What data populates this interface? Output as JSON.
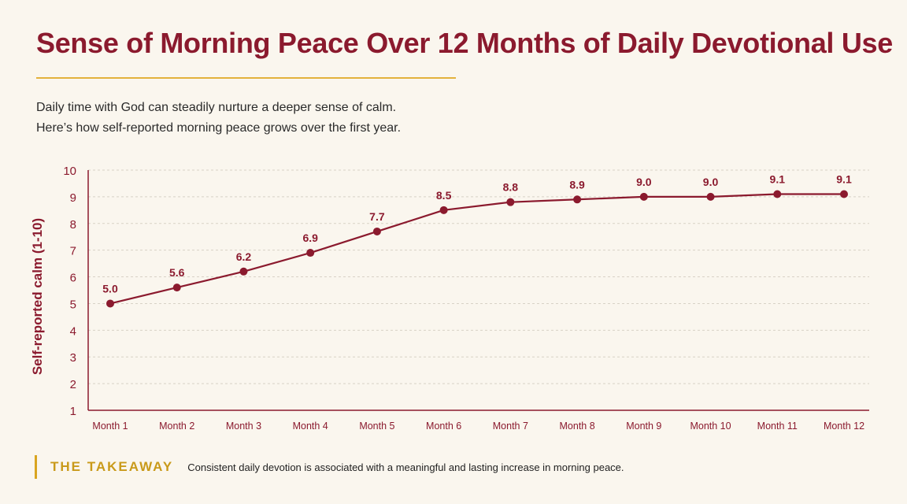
{
  "header": {
    "title": "Sense of Morning Peace Over 12 Months of Daily Devotional Use",
    "subtitle_line1": "Daily time with God can steadily nurture a deeper sense of calm.",
    "subtitle_line2": "Here’s how self-reported morning peace grows over the first year."
  },
  "takeaway": {
    "label": "THE TAKEAWAY",
    "text": "Consistent daily devotion is associated with a meaningful and lasting increase in morning peace."
  },
  "colors": {
    "line": "#8b1a2e",
    "accent": "#e3b23c",
    "background": "#faf6ee"
  },
  "chart_data": {
    "type": "line",
    "title": "Sense of Morning Peace Over 12 Months of Daily Devotional Use",
    "xlabel": "",
    "ylabel": "Self-reported calm (1-10)",
    "categories": [
      "Month 1",
      "Month 2",
      "Month 3",
      "Month 4",
      "Month 5",
      "Month 6",
      "Month 7",
      "Month 8",
      "Month 9",
      "Month 10",
      "Month 11",
      "Month 12"
    ],
    "values": [
      5.0,
      5.6,
      6.2,
      6.9,
      7.7,
      8.5,
      8.8,
      8.9,
      9.0,
      9.0,
      9.1,
      9.1
    ],
    "value_labels": [
      "5.0",
      "5.6",
      "6.2",
      "6.9",
      "7.7",
      "8.5",
      "8.8",
      "8.9",
      "9.0",
      "9.0",
      "9.1",
      "9.1"
    ],
    "yticks": [
      1,
      2,
      3,
      4,
      5,
      6,
      7,
      8,
      9,
      10
    ],
    "ylim": [
      1,
      10
    ],
    "grid": true,
    "legend": "none"
  }
}
